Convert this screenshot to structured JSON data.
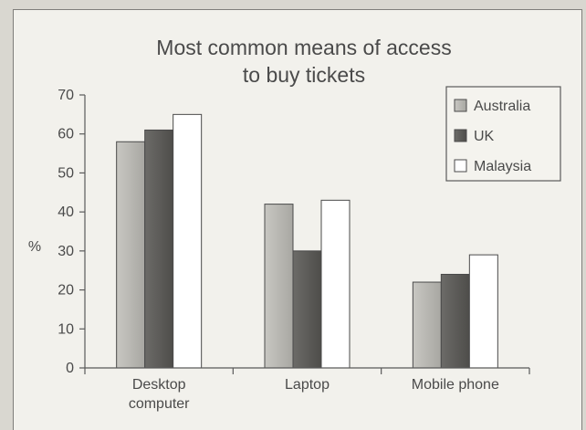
{
  "chart_data": {
    "type": "bar",
    "title_lines": [
      "Most common means of access",
      "to buy tickets"
    ],
    "ylabel": "%",
    "ylim": [
      0,
      70
    ],
    "yticks": [
      0,
      10,
      20,
      30,
      40,
      50,
      60,
      70
    ],
    "categories": [
      [
        "Desktop",
        "computer"
      ],
      [
        "Laptop"
      ],
      [
        "Mobile phone"
      ]
    ],
    "series": [
      {
        "name": "Australia",
        "values": [
          58,
          42,
          22
        ],
        "color": "#b5b4af"
      },
      {
        "name": "UK",
        "values": [
          61,
          30,
          24
        ],
        "color": "#5e5d5a"
      },
      {
        "name": "Malaysia",
        "values": [
          65,
          43,
          29
        ],
        "color": "#ffffff"
      }
    ],
    "legend_position": "top-right",
    "grid": false
  }
}
